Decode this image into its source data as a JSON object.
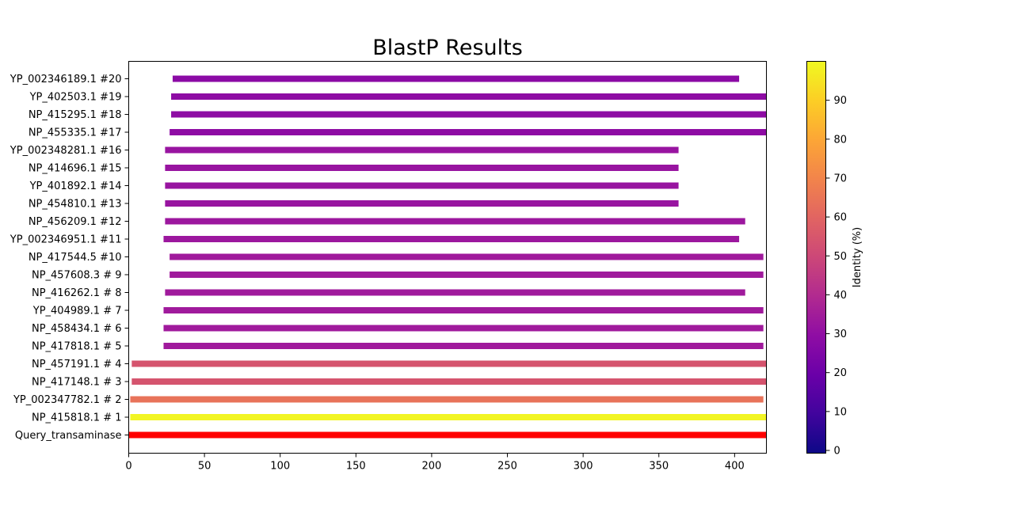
{
  "chart_data": {
    "type": "bar",
    "orientation": "horizontal",
    "title": "BlastP Results",
    "xlabel": "",
    "ylabel": "",
    "xlim": [
      0,
      421
    ],
    "xticks": [
      0,
      50,
      100,
      150,
      200,
      250,
      300,
      350,
      400
    ],
    "grid": false,
    "bars": [
      {
        "label": "Query_transaminase",
        "start": 0,
        "end": 421,
        "identity": 100,
        "color": "#ff0000"
      },
      {
        "label": "NP_415818.1 # 1",
        "start": 1,
        "end": 421,
        "identity": 96,
        "color": "#f2f524"
      },
      {
        "label": "YP_002347782.1 # 2",
        "start": 1,
        "end": 419,
        "identity": 66,
        "color": "#e8735a"
      },
      {
        "label": "NP_417148.1 # 3",
        "start": 2,
        "end": 421,
        "identity": 52,
        "color": "#d5546e"
      },
      {
        "label": "NP_457191.1 # 4",
        "start": 2,
        "end": 421,
        "identity": 52,
        "color": "#d5546e"
      },
      {
        "label": "NP_417818.1 # 5",
        "start": 23,
        "end": 419,
        "identity": 36,
        "color": "#a01a9c"
      },
      {
        "label": "NP_458434.1 # 6",
        "start": 23,
        "end": 419,
        "identity": 36,
        "color": "#a01a9c"
      },
      {
        "label": "YP_404989.1 # 7",
        "start": 23,
        "end": 419,
        "identity": 36,
        "color": "#a01a9c"
      },
      {
        "label": "NP_416262.1 # 8",
        "start": 24,
        "end": 407,
        "identity": 36,
        "color": "#a01a9c"
      },
      {
        "label": "NP_457608.3 # 9",
        "start": 27,
        "end": 419,
        "identity": 36,
        "color": "#a01a9c"
      },
      {
        "label": "NP_417544.5 #10",
        "start": 27,
        "end": 419,
        "identity": 36,
        "color": "#a01a9c"
      },
      {
        "label": "YP_002346951.1 #11",
        "start": 23,
        "end": 403,
        "identity": 35,
        "color": "#9c179e"
      },
      {
        "label": "NP_456209.1 #12",
        "start": 24,
        "end": 407,
        "identity": 35,
        "color": "#9c179e"
      },
      {
        "label": "NP_454810.1 #13",
        "start": 24,
        "end": 363,
        "identity": 34,
        "color": "#9814a0"
      },
      {
        "label": "YP_401892.1 #14",
        "start": 24,
        "end": 363,
        "identity": 34,
        "color": "#9814a0"
      },
      {
        "label": "NP_414696.1 #15",
        "start": 24,
        "end": 363,
        "identity": 34,
        "color": "#9814a0"
      },
      {
        "label": "YP_002348281.1 #16",
        "start": 24,
        "end": 363,
        "identity": 34,
        "color": "#9814a0"
      },
      {
        "label": "NP_455335.1 #17",
        "start": 27,
        "end": 421,
        "identity": 31,
        "color": "#8e0ca4"
      },
      {
        "label": "NP_415295.1 #18",
        "start": 28,
        "end": 421,
        "identity": 31,
        "color": "#8e0ca4"
      },
      {
        "label": "YP_402503.1 #19",
        "start": 28,
        "end": 421,
        "identity": 31,
        "color": "#8e0ca4"
      },
      {
        "label": "YP_002346189.1 #20",
        "start": 29,
        "end": 403,
        "identity": 30,
        "color": "#8b0aa5"
      }
    ],
    "colorbar": {
      "label": "Identity (%)",
      "colormap": "plasma",
      "range": [
        0,
        100
      ],
      "ticks": [
        0,
        10,
        20,
        30,
        40,
        50,
        60,
        70,
        80,
        90
      ],
      "stops": [
        "#0d0887",
        "#41049d",
        "#6a00a8",
        "#8f0da4",
        "#b12a90",
        "#cc4778",
        "#e16462",
        "#f2844b",
        "#fca636",
        "#fcce25",
        "#f0f921"
      ]
    }
  }
}
